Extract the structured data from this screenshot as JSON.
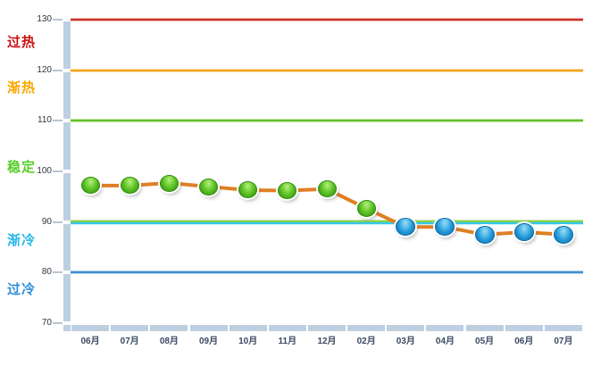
{
  "chart_data": {
    "type": "line",
    "title": "",
    "categories": [
      "06月",
      "07月",
      "08月",
      "09月",
      "10月",
      "11月",
      "12月",
      "02月",
      "03月",
      "04月",
      "05月",
      "06月",
      "07月"
    ],
    "values": [
      97.2,
      97.2,
      97.7,
      97.0,
      96.3,
      96.2,
      96.5,
      92.7,
      89.0,
      89.0,
      87.5,
      88.0,
      87.5
    ],
    "ylim": [
      70,
      130
    ],
    "yticks": [
      130,
      120,
      110,
      100,
      90,
      80,
      70
    ],
    "grid": "off",
    "legend": "none",
    "marker_rule": "green if value >= 90 else blue",
    "threshold_lines": [
      {
        "value": 130,
        "kind": "single",
        "core": "#c9342c",
        "halo": "#f2b3ac"
      },
      {
        "value": 120,
        "kind": "single",
        "core": "#f5a51f",
        "halo": "#fbd9a0"
      },
      {
        "value": 110,
        "kind": "single",
        "core": "#62c32d",
        "halo": "#c3e8a3"
      },
      {
        "value": 90,
        "kind": "dual",
        "core": "#85d24f",
        "halo": "#cfe9b4",
        "core2": "#35c6ec",
        "halo2": "#c4eef9"
      },
      {
        "value": 80,
        "kind": "single",
        "core": "#3f8fd2",
        "halo": "#b3d2ec"
      }
    ],
    "zones": [
      {
        "label": "过热",
        "color": "#cc1010",
        "label_at": 126.0
      },
      {
        "label": "渐热",
        "color": "#f7a800",
        "label_at": 117.0
      },
      {
        "label": "稳定",
        "color": "#58cc28",
        "label_at": 101.2
      },
      {
        "label": "渐冷",
        "color": "#29b7ea",
        "label_at": 86.8
      },
      {
        "label": "过冷",
        "color": "#2e8fd4",
        "label_at": 77.1
      }
    ],
    "colors": {
      "series_line": "#e07f25",
      "marker_green": "#4fb41e",
      "marker_green_border": "#2f8a0e",
      "marker_blue": "#1f8fd0",
      "marker_blue_border": "#0e6da8",
      "axis_bar": "#bdd0e1",
      "tick_dash": "#b9c6d3",
      "tick_label_color": "#333333",
      "x_label_color": "#3a4a63"
    }
  }
}
